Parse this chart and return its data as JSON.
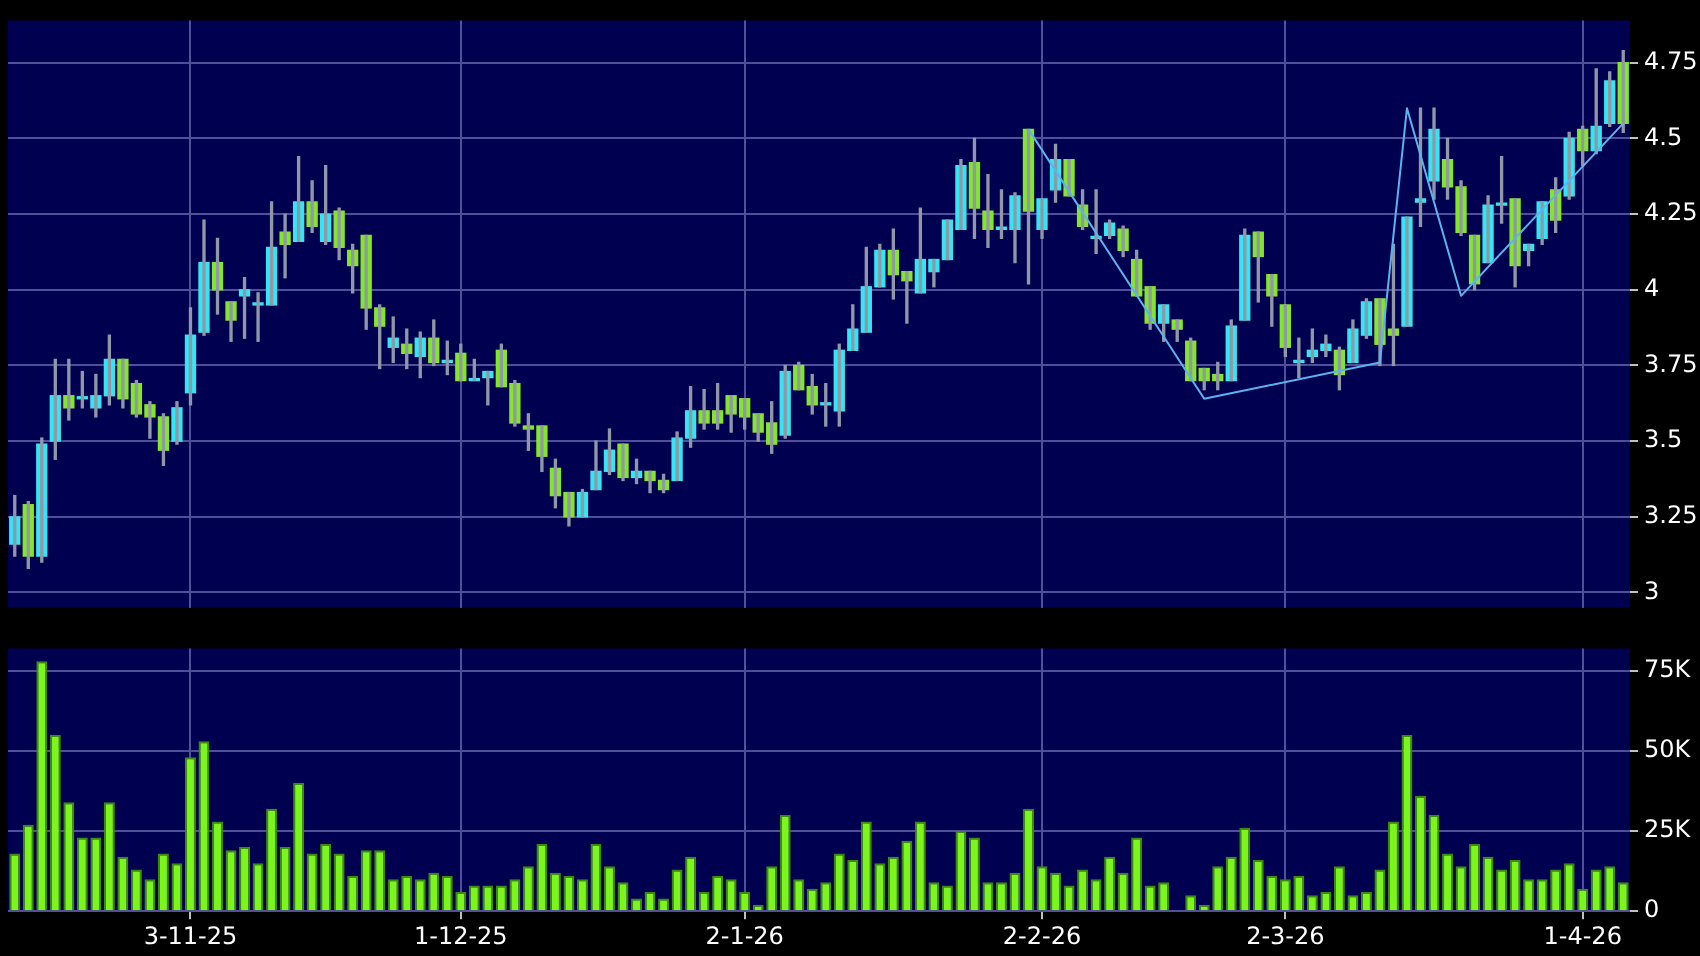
{
  "chart_data": [
    {
      "type": "candlestick",
      "categories": [
        null,
        null,
        null,
        null,
        null,
        null,
        null,
        null,
        null,
        null,
        null,
        null,
        null,
        null,
        null,
        null,
        null,
        null,
        null,
        null,
        null,
        null,
        null,
        null,
        null,
        null,
        null,
        null,
        null,
        null,
        null,
        null,
        null,
        null,
        null,
        null,
        null,
        null,
        null,
        null,
        null,
        null,
        null,
        null,
        null,
        null,
        null,
        null,
        null,
        null,
        null,
        null,
        null,
        null,
        null,
        null,
        null,
        null,
        null,
        null,
        null,
        null,
        null,
        null,
        null,
        null,
        null,
        null,
        null,
        null,
        null,
        null,
        null,
        null,
        null,
        null,
        null,
        null,
        null,
        null,
        null,
        null,
        null,
        null,
        null,
        null,
        null,
        null,
        null,
        null,
        null,
        null,
        null,
        null,
        null,
        null,
        null,
        null,
        null,
        null,
        null,
        null,
        null,
        null,
        null,
        null,
        null,
        null,
        null,
        null,
        null,
        null,
        null,
        null,
        null,
        null,
        null,
        null,
        null,
        null
      ],
      "ohlc": [
        [
          3.16,
          3.32,
          3.12,
          3.25
        ],
        [
          3.29,
          3.3,
          3.08,
          3.12
        ],
        [
          3.12,
          3.51,
          3.1,
          3.49
        ],
        [
          3.5,
          3.77,
          3.44,
          3.65
        ],
        [
          3.65,
          3.77,
          3.57,
          3.61
        ],
        [
          3.64,
          3.73,
          3.61,
          3.64
        ],
        [
          3.61,
          3.72,
          3.58,
          3.65
        ],
        [
          3.65,
          3.85,
          3.62,
          3.77
        ],
        [
          3.77,
          3.77,
          3.61,
          3.64
        ],
        [
          3.69,
          3.7,
          3.58,
          3.59
        ],
        [
          3.62,
          3.63,
          3.51,
          3.58
        ],
        [
          3.58,
          3.59,
          3.42,
          3.47
        ],
        [
          3.5,
          3.63,
          3.49,
          3.61
        ],
        [
          3.66,
          3.94,
          3.62,
          3.85
        ],
        [
          3.86,
          4.23,
          3.85,
          4.09
        ],
        [
          4.09,
          4.17,
          3.92,
          4.0
        ],
        [
          3.96,
          3.96,
          3.83,
          3.9
        ],
        [
          3.98,
          4.04,
          3.84,
          4.0
        ],
        [
          3.95,
          3.99,
          3.83,
          3.95
        ],
        [
          3.95,
          4.29,
          3.95,
          4.14
        ],
        [
          4.19,
          4.25,
          4.04,
          4.15
        ],
        [
          4.16,
          4.44,
          4.16,
          4.29
        ],
        [
          4.29,
          4.36,
          4.19,
          4.21
        ],
        [
          4.16,
          4.41,
          4.15,
          4.25
        ],
        [
          4.26,
          4.27,
          4.1,
          4.14
        ],
        [
          4.13,
          4.15,
          3.99,
          4.08
        ],
        [
          4.18,
          4.18,
          3.87,
          3.94
        ],
        [
          3.94,
          3.95,
          3.74,
          3.88
        ],
        [
          3.81,
          3.91,
          3.76,
          3.84
        ],
        [
          3.82,
          3.87,
          3.74,
          3.79
        ],
        [
          3.78,
          3.86,
          3.71,
          3.84
        ],
        [
          3.84,
          3.9,
          3.75,
          3.76
        ],
        [
          3.76,
          3.83,
          3.72,
          3.76
        ],
        [
          3.79,
          3.82,
          3.7,
          3.7
        ],
        [
          3.7,
          3.77,
          3.7,
          3.7
        ],
        [
          3.71,
          3.73,
          3.62,
          3.73
        ],
        [
          3.8,
          3.82,
          3.68,
          3.68
        ],
        [
          3.69,
          3.7,
          3.55,
          3.56
        ],
        [
          3.55,
          3.59,
          3.47,
          3.54
        ],
        [
          3.55,
          3.55,
          3.4,
          3.45
        ],
        [
          3.41,
          3.44,
          3.28,
          3.32
        ],
        [
          3.33,
          3.33,
          3.22,
          3.25
        ],
        [
          3.25,
          3.34,
          3.25,
          3.33
        ],
        [
          3.34,
          3.5,
          3.34,
          3.4
        ],
        [
          3.4,
          3.54,
          3.39,
          3.47
        ],
        [
          3.49,
          3.49,
          3.37,
          3.38
        ],
        [
          3.38,
          3.44,
          3.36,
          3.4
        ],
        [
          3.4,
          3.4,
          3.33,
          3.37
        ],
        [
          3.37,
          3.39,
          3.33,
          3.34
        ],
        [
          3.37,
          3.53,
          3.37,
          3.51
        ],
        [
          3.51,
          3.68,
          3.48,
          3.6
        ],
        [
          3.6,
          3.67,
          3.54,
          3.56
        ],
        [
          3.6,
          3.69,
          3.54,
          3.56
        ],
        [
          3.65,
          3.65,
          3.53,
          3.59
        ],
        [
          3.64,
          3.64,
          3.54,
          3.58
        ],
        [
          3.59,
          3.59,
          3.5,
          3.53
        ],
        [
          3.56,
          3.63,
          3.46,
          3.49
        ],
        [
          3.52,
          3.75,
          3.51,
          3.73
        ],
        [
          3.75,
          3.76,
          3.67,
          3.67
        ],
        [
          3.68,
          3.72,
          3.59,
          3.62
        ],
        [
          3.62,
          3.69,
          3.55,
          3.62
        ],
        [
          3.6,
          3.82,
          3.55,
          3.8
        ],
        [
          3.8,
          3.95,
          3.8,
          3.87
        ],
        [
          3.86,
          4.14,
          3.86,
          4.01
        ],
        [
          4.01,
          4.15,
          4.01,
          4.13
        ],
        [
          4.13,
          4.2,
          3.97,
          4.05
        ],
        [
          4.06,
          4.06,
          3.89,
          4.03
        ],
        [
          3.99,
          4.27,
          3.99,
          4.1
        ],
        [
          4.06,
          4.1,
          4.01,
          4.1
        ],
        [
          4.1,
          4.23,
          4.1,
          4.23
        ],
        [
          4.2,
          4.43,
          4.2,
          4.41
        ],
        [
          4.42,
          4.5,
          4.17,
          4.27
        ],
        [
          4.26,
          4.38,
          4.14,
          4.2
        ],
        [
          4.2,
          4.33,
          4.17,
          4.2
        ],
        [
          4.2,
          4.32,
          4.09,
          4.31
        ],
        [
          4.53,
          4.53,
          4.02,
          4.26
        ],
        [
          4.2,
          4.3,
          4.17,
          4.3
        ],
        [
          4.33,
          4.48,
          4.29,
          4.43
        ],
        [
          4.43,
          4.43,
          4.31,
          4.31
        ],
        [
          4.28,
          4.33,
          4.2,
          4.21
        ],
        [
          4.17,
          4.33,
          4.12,
          4.17
        ],
        [
          4.18,
          4.23,
          4.17,
          4.22
        ],
        [
          4.2,
          4.21,
          4.11,
          4.13
        ],
        [
          4.1,
          4.13,
          3.98,
          3.98
        ],
        [
          4.01,
          4.01,
          3.87,
          3.89
        ],
        [
          3.89,
          3.95,
          3.83,
          3.95
        ],
        [
          3.9,
          3.9,
          3.83,
          3.87
        ],
        [
          3.83,
          3.84,
          3.7,
          3.7
        ],
        [
          3.74,
          3.74,
          3.67,
          3.7
        ],
        [
          3.72,
          3.76,
          3.67,
          3.7
        ],
        [
          3.7,
          3.9,
          3.7,
          3.88
        ],
        [
          3.9,
          4.2,
          3.9,
          4.18
        ],
        [
          4.19,
          4.19,
          3.96,
          4.11
        ],
        [
          4.05,
          4.05,
          3.88,
          3.98
        ],
        [
          3.95,
          3.95,
          3.78,
          3.81
        ],
        [
          3.76,
          3.84,
          3.71,
          3.76
        ],
        [
          3.78,
          3.87,
          3.76,
          3.8
        ],
        [
          3.8,
          3.85,
          3.78,
          3.82
        ],
        [
          3.8,
          3.81,
          3.67,
          3.72
        ],
        [
          3.76,
          3.9,
          3.76,
          3.87
        ],
        [
          3.85,
          3.97,
          3.84,
          3.96
        ],
        [
          3.97,
          3.97,
          3.75,
          3.82
        ],
        [
          3.87,
          4.15,
          3.75,
          3.85
        ],
        [
          3.88,
          4.24,
          3.88,
          4.24
        ],
        [
          4.29,
          4.6,
          4.21,
          4.3
        ],
        [
          4.36,
          4.6,
          4.3,
          4.53
        ],
        [
          4.43,
          4.5,
          4.3,
          4.34
        ],
        [
          4.34,
          4.36,
          4.18,
          4.19
        ],
        [
          4.18,
          4.18,
          4.0,
          4.02
        ],
        [
          4.09,
          4.31,
          4.09,
          4.28
        ],
        [
          4.28,
          4.44,
          4.22,
          4.28
        ],
        [
          4.3,
          4.3,
          4.01,
          4.08
        ],
        [
          4.13,
          4.15,
          4.08,
          4.15
        ],
        [
          4.17,
          4.29,
          4.15,
          4.29
        ],
        [
          4.33,
          4.37,
          4.19,
          4.23
        ],
        [
          4.31,
          4.52,
          4.3,
          4.5
        ],
        [
          4.53,
          4.54,
          4.41,
          4.46
        ],
        [
          4.46,
          4.73,
          4.45,
          4.54
        ],
        [
          4.55,
          4.72,
          4.54,
          4.69
        ],
        [
          4.75,
          4.79,
          4.52,
          4.55
        ]
      ],
      "colors": [
        "#33e6f2",
        "#84e62a",
        "#33e6f2",
        "#33e6f2",
        "#84e62a",
        "#33e6f2",
        "#33e6f2",
        "#33e6f2",
        "#84e62a",
        "#84e62a",
        "#84e62a",
        "#84e62a",
        "#33e6f2",
        "#33e6f2",
        "#33e6f2",
        "#84e62a",
        "#84e62a",
        "#33e6f2",
        "#33e6f2",
        "#33e6f2",
        "#84e62a",
        "#33e6f2",
        "#84e62a",
        "#33e6f2",
        "#84e62a",
        "#84e62a",
        "#84e62a",
        "#84e62a",
        "#33e6f2",
        "#84e62a",
        "#33e6f2",
        "#84e62a",
        "#33e6f2",
        "#84e62a",
        "#33e6f2",
        "#33e6f2",
        "#84e62a",
        "#84e62a",
        "#84e62a",
        "#84e62a",
        "#84e62a",
        "#84e62a",
        "#33e6f2",
        "#33e6f2",
        "#33e6f2",
        "#84e62a",
        "#33e6f2",
        "#84e62a",
        "#84e62a",
        "#33e6f2",
        "#33e6f2",
        "#84e62a",
        "#84e62a",
        "#84e62a",
        "#84e62a",
        "#84e62a",
        "#84e62a",
        "#33e6f2",
        "#84e62a",
        "#84e62a",
        "#33e6f2",
        "#33e6f2",
        "#33e6f2",
        "#33e6f2",
        "#33e6f2",
        "#84e62a",
        "#84e62a",
        "#33e6f2",
        "#33e6f2",
        "#33e6f2",
        "#33e6f2",
        "#84e62a",
        "#84e62a",
        "#33e6f2",
        "#33e6f2",
        "#84e62a",
        "#33e6f2",
        "#33e6f2",
        "#84e62a",
        "#84e62a",
        "#33e6f2",
        "#33e6f2",
        "#84e62a",
        "#84e62a",
        "#84e62a",
        "#33e6f2",
        "#84e62a",
        "#84e62a",
        "#84e62a",
        "#84e62a",
        "#33e6f2",
        "#33e6f2",
        "#84e62a",
        "#84e62a",
        "#84e62a",
        "#33e6f2",
        "#33e6f2",
        "#33e6f2",
        "#84e62a",
        "#33e6f2",
        "#33e6f2",
        "#84e62a",
        "#84e62a",
        "#33e6f2",
        "#33e6f2",
        "#33e6f2",
        "#84e62a",
        "#84e62a",
        "#84e62a",
        "#33e6f2",
        "#33e6f2",
        "#84e62a",
        "#33e6f2",
        "#33e6f2",
        "#84e62a",
        "#33e6f2",
        "#84e62a",
        "#33e6f2",
        "#33e6f2",
        "#84e62a"
      ],
      "series": [
        {
          "type": "line",
          "color": "#5ab4f0",
          "values": [
            null,
            null,
            null,
            null,
            null,
            null,
            null,
            null,
            null,
            null,
            null,
            null,
            null,
            null,
            null,
            null,
            null,
            null,
            null,
            null,
            null,
            null,
            null,
            null,
            null,
            null,
            null,
            null,
            null,
            null,
            null,
            null,
            null,
            null,
            null,
            null,
            null,
            null,
            null,
            null,
            null,
            null,
            null,
            null,
            null,
            null,
            null,
            null,
            null,
            null,
            null,
            null,
            null,
            null,
            null,
            null,
            null,
            null,
            null,
            null,
            null,
            null,
            null,
            null,
            null,
            null,
            null,
            null,
            null,
            null,
            null,
            null,
            null,
            null,
            null,
            4.53,
            null,
            null,
            null,
            null,
            null,
            null,
            null,
            null,
            null,
            null,
            null,
            null,
            3.64,
            null,
            null,
            null,
            null,
            null,
            null,
            null,
            null,
            null,
            null,
            null,
            null,
            3.76,
            null,
            4.6,
            null,
            null,
            null,
            3.98,
            null,
            null,
            null,
            null,
            null,
            null,
            null,
            null,
            null,
            null,
            null,
            4.55
          ]
        }
      ],
      "ylim": [
        2.95,
        4.89
      ],
      "yticks": [
        3,
        3.25,
        3.5,
        3.75,
        4,
        4.25,
        4.5,
        4.75
      ],
      "grid": true,
      "tick_labels": "y"
    },
    {
      "type": "bar",
      "categories": [
        null,
        null,
        null,
        null,
        null,
        null,
        null,
        null,
        null,
        null,
        null,
        null,
        null,
        "3-11-25",
        null,
        null,
        null,
        null,
        null,
        null,
        null,
        null,
        null,
        null,
        null,
        null,
        null,
        null,
        null,
        null,
        null,
        null,
        null,
        "1-12-25",
        null,
        null,
        null,
        null,
        null,
        null,
        null,
        null,
        null,
        null,
        null,
        null,
        null,
        null,
        null,
        null,
        null,
        null,
        null,
        null,
        "2-1-26",
        null,
        null,
        null,
        null,
        null,
        null,
        null,
        null,
        null,
        null,
        null,
        null,
        null,
        null,
        null,
        null,
        null,
        null,
        null,
        null,
        null,
        "2-2-26",
        null,
        null,
        null,
        null,
        null,
        null,
        null,
        null,
        null,
        null,
        null,
        null,
        null,
        null,
        null,
        null,
        null,
        "2-3-26",
        null,
        null,
        null,
        null,
        null,
        null,
        null,
        null,
        null,
        null,
        null,
        null,
        null,
        null,
        null,
        null,
        null,
        null,
        null,
        null,
        null,
        "1-4-26",
        null,
        null,
        null
      ],
      "values": [
        18,
        27,
        78,
        55,
        34,
        23,
        23,
        34,
        17,
        13,
        10,
        18,
        15,
        48,
        53,
        28,
        19,
        20,
        15,
        32,
        20,
        40,
        18,
        21,
        18,
        11,
        19,
        19,
        10,
        11,
        10,
        12,
        11,
        6,
        8,
        8,
        8,
        10,
        14,
        21,
        12,
        11,
        10,
        21,
        14,
        9,
        4,
        6,
        4,
        13,
        17,
        6,
        11,
        10,
        6,
        2,
        14,
        30,
        10,
        7,
        9,
        18,
        16,
        28,
        15,
        17,
        22,
        28,
        9,
        8,
        25,
        23,
        9,
        9,
        12,
        32,
        14,
        12,
        8,
        13,
        10,
        17,
        12,
        23,
        8,
        9,
        0,
        5,
        2,
        14,
        17,
        26,
        16,
        11,
        10,
        11,
        5,
        6,
        14,
        5,
        6,
        13,
        28,
        55,
        36,
        30,
        18,
        14,
        21,
        17,
        13,
        16,
        10,
        10,
        13,
        15,
        7,
        13,
        14,
        9
      ],
      "color": "#7cf51e",
      "ylim": [
        0,
        82
      ],
      "yticks": [
        0,
        {
          "value": 25,
          "label": "25K"
        },
        {
          "value": 50,
          "label": "50K"
        },
        {
          "value": 75,
          "label": "75K"
        }
      ],
      "grid": true
    }
  ]
}
